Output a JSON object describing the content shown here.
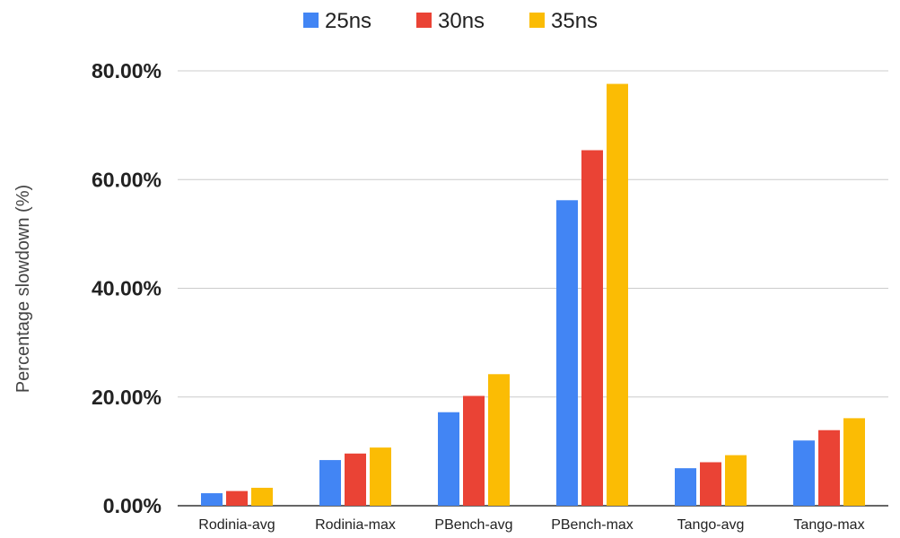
{
  "chart_data": {
    "type": "bar",
    "title": "",
    "xlabel": "",
    "ylabel": "Percentage slowdown (%)",
    "ylim": [
      0,
      80
    ],
    "yticks": [
      "0.00%",
      "20.00%",
      "40.00%",
      "60.00%",
      "80.00%"
    ],
    "ytick_values": [
      0,
      20,
      40,
      60,
      80
    ],
    "grid": true,
    "legend_position": "top",
    "categories": [
      "Rodinia-avg",
      "Rodinia-max",
      "PBench-avg",
      "PBench-max",
      "Tango-avg",
      "Tango-max"
    ],
    "series": [
      {
        "name": "25ns",
        "color": "#4285f4",
        "values": [
          2.3,
          8.4,
          17.2,
          56.2,
          6.9,
          12.0
        ]
      },
      {
        "name": "30ns",
        "color": "#ea4335",
        "values": [
          2.7,
          9.6,
          20.2,
          65.4,
          8.0,
          13.9
        ]
      },
      {
        "name": "35ns",
        "color": "#fbbc04",
        "values": [
          3.3,
          10.7,
          24.2,
          77.6,
          9.3,
          16.1
        ]
      }
    ]
  }
}
